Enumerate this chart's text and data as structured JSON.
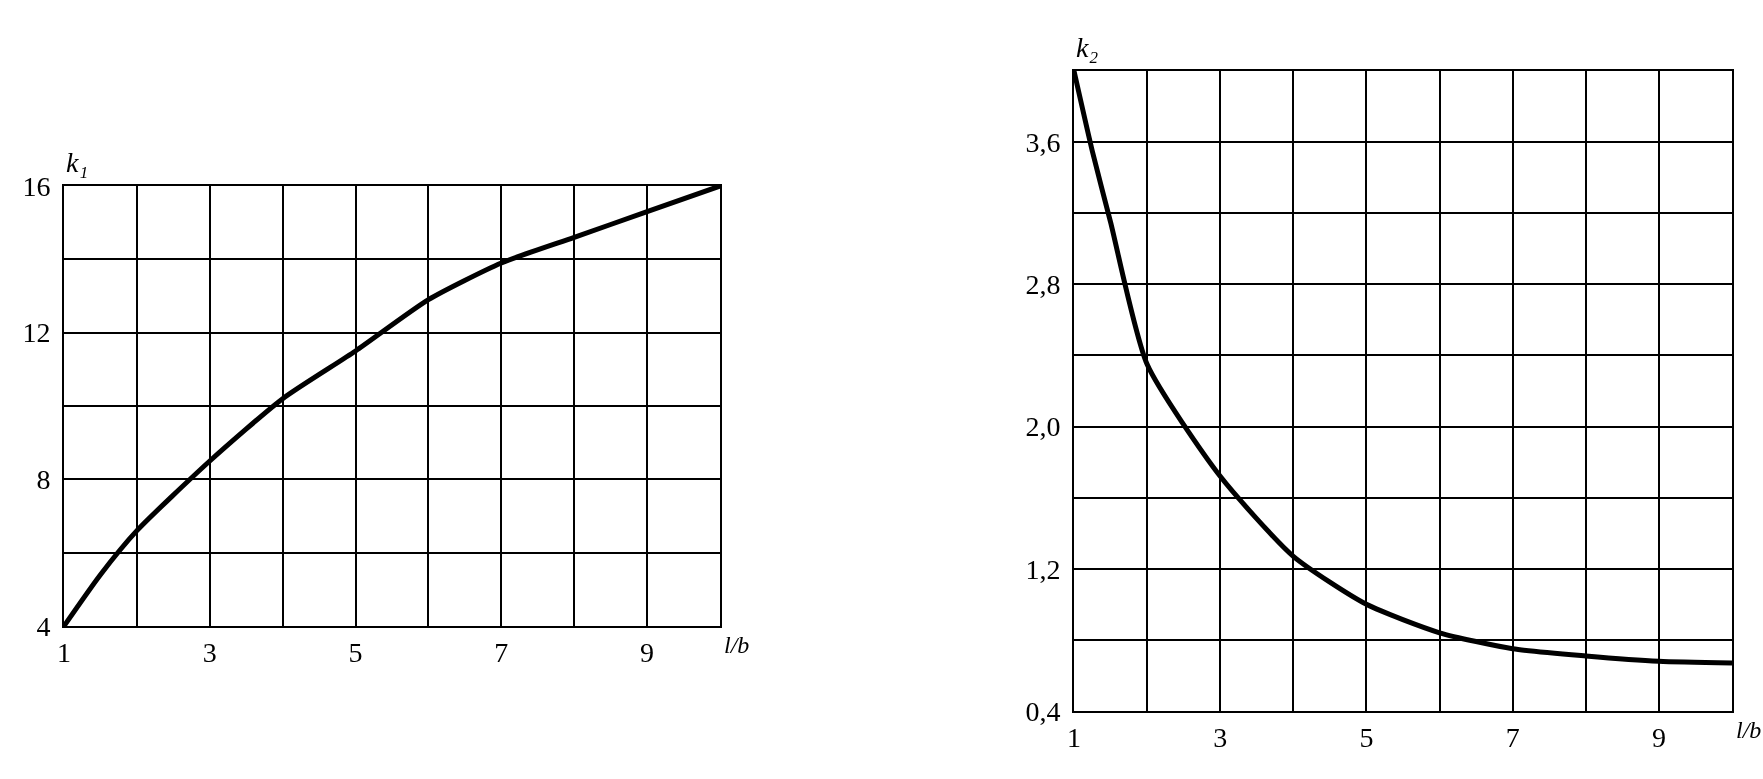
{
  "chart_data": [
    {
      "type": "line",
      "xlabel": "l/b",
      "ylabel": "k₁",
      "grid": true,
      "marker": "none",
      "line_style": "solid",
      "series": [
        {
          "color": "#000000",
          "x": [
            1,
            1.5,
            2,
            3,
            4,
            5,
            6,
            7,
            8,
            9,
            10
          ],
          "values": [
            4,
            5.4,
            6.6,
            8.5,
            10.2,
            11.5,
            12.9,
            13.9,
            14.6,
            15.3,
            16
          ]
        }
      ],
      "xlim": [
        1,
        10
      ],
      "xticks": [
        1,
        {
          "value": 2,
          "label": null
        },
        3,
        {
          "value": 4,
          "label": null
        },
        5,
        {
          "value": 6,
          "label": null
        },
        7,
        {
          "value": 8,
          "label": null
        },
        9,
        {
          "value": 10,
          "label": null
        }
      ],
      "ylim": [
        4,
        16
      ],
      "yticks": [
        4,
        {
          "value": 6,
          "label": null
        },
        8,
        {
          "value": 10,
          "label": null
        },
        12,
        {
          "value": 14,
          "label": null
        },
        16
      ]
    },
    {
      "type": "line",
      "xlabel": "l/b",
      "ylabel": "k₂",
      "grid": true,
      "marker": "none",
      "line_style": "solid",
      "series": [
        {
          "color": "#000000",
          "x": [
            1,
            1.25,
            1.5,
            2,
            3,
            4,
            5,
            6,
            7,
            8,
            9,
            10
          ],
          "values": [
            4.0,
            3.55,
            3.15,
            2.35,
            1.72,
            1.27,
            1.0,
            0.84,
            0.75,
            0.71,
            0.68,
            0.67
          ]
        }
      ],
      "xlim": [
        1,
        10
      ],
      "xticks": [
        1,
        {
          "value": 2,
          "label": null
        },
        3,
        {
          "value": 4,
          "label": null
        },
        5,
        {
          "value": 6,
          "label": null
        },
        7,
        {
          "value": 8,
          "label": null
        },
        9,
        {
          "value": 10,
          "label": null
        }
      ],
      "ylim": [
        0.4,
        4.0
      ],
      "yticks": [
        {
          "value": 0.4,
          "label": "0,4"
        },
        {
          "value": 0.8,
          "label": null
        },
        {
          "value": 1.2,
          "label": "1,2"
        },
        {
          "value": 1.6,
          "label": null
        },
        {
          "value": 2.0,
          "label": "2,0"
        },
        {
          "value": 2.4,
          "label": null
        },
        {
          "value": 2.8,
          "label": "2,8"
        },
        {
          "value": 3.2,
          "label": null
        },
        {
          "value": 3.6,
          "label": "3,6"
        },
        {
          "value": 4.0,
          "label": null
        }
      ]
    }
  ]
}
